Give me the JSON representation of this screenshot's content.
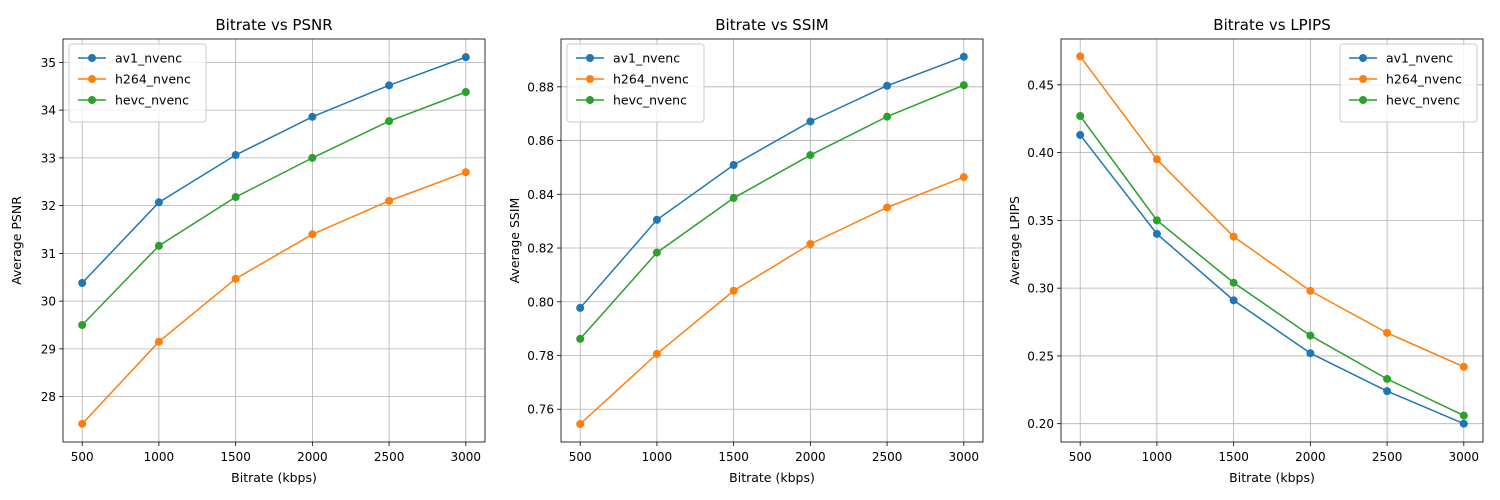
{
  "chart_data": [
    {
      "type": "line",
      "title": "Bitrate vs PSNR",
      "xlabel": "Bitrate (kbps)",
      "ylabel": "Average PSNR",
      "x": [
        500,
        1000,
        1500,
        2000,
        2500,
        3000
      ],
      "xticks": [
        "500",
        "1000",
        "1500",
        "2000",
        "2500",
        "3000"
      ],
      "xlim": [
        375,
        3125
      ],
      "ylim": [
        27.05,
        35.49
      ],
      "yticks": [
        "28",
        "29",
        "30",
        "31",
        "32",
        "33",
        "34",
        "35"
      ],
      "yticks_values": [
        28,
        29,
        30,
        31,
        32,
        33,
        34,
        35
      ],
      "grid": true,
      "legend_position": "upper-left",
      "series": [
        {
          "name": "av1_nvenc",
          "color": "#1f77b4",
          "values": [
            30.38,
            32.07,
            33.06,
            33.86,
            34.52,
            35.11
          ]
        },
        {
          "name": "h264_nvenc",
          "color": "#ff7f0e",
          "values": [
            27.43,
            29.15,
            30.47,
            31.4,
            32.1,
            32.7
          ]
        },
        {
          "name": "hevc_nvenc",
          "color": "#2ca02c",
          "values": [
            29.5,
            31.16,
            32.18,
            33.0,
            33.77,
            34.38
          ]
        }
      ]
    },
    {
      "type": "line",
      "title": "Bitrate vs SSIM",
      "xlabel": "Bitrate (kbps)",
      "ylabel": "Average SSIM",
      "x": [
        500,
        1000,
        1500,
        2000,
        2500,
        3000
      ],
      "xticks": [
        "500",
        "1000",
        "1500",
        "2000",
        "2500",
        "3000"
      ],
      "xlim": [
        375,
        3125
      ],
      "ylim": [
        0.7478,
        0.8978
      ],
      "yticks": [
        "0.76",
        "0.78",
        "0.80",
        "0.82",
        "0.84",
        "0.86",
        "0.88"
      ],
      "yticks_values": [
        0.76,
        0.78,
        0.8,
        0.82,
        0.84,
        0.86,
        0.88
      ],
      "grid": true,
      "legend_position": "upper-left",
      "series": [
        {
          "name": "av1_nvenc",
          "color": "#1f77b4",
          "values": [
            0.7977,
            0.8305,
            0.8509,
            0.8671,
            0.8804,
            0.8912
          ]
        },
        {
          "name": "h264_nvenc",
          "color": "#ff7f0e",
          "values": [
            0.7545,
            0.7806,
            0.8041,
            0.8215,
            0.8351,
            0.8464
          ]
        },
        {
          "name": "hevc_nvenc",
          "color": "#2ca02c",
          "values": [
            0.7862,
            0.8183,
            0.8386,
            0.8546,
            0.8689,
            0.8806
          ]
        }
      ]
    },
    {
      "type": "line",
      "title": "Bitrate vs LPIPS",
      "xlabel": "Bitrate (kbps)",
      "ylabel": "Average LPIPS",
      "x": [
        500,
        1000,
        1500,
        2000,
        2500,
        3000
      ],
      "xticks": [
        "500",
        "1000",
        "1500",
        "2000",
        "2500",
        "3000"
      ],
      "xlim": [
        375,
        3125
      ],
      "ylim": [
        0.1865,
        0.4838
      ],
      "yticks": [
        "0.20",
        "0.25",
        "0.30",
        "0.35",
        "0.40",
        "0.45"
      ],
      "yticks_values": [
        0.2,
        0.25,
        0.3,
        0.35,
        0.4,
        0.45
      ],
      "grid": true,
      "legend_position": "upper-right",
      "series": [
        {
          "name": "av1_nvenc",
          "color": "#1f77b4",
          "values": [
            0.413,
            0.34,
            0.291,
            0.252,
            0.224,
            0.2
          ]
        },
        {
          "name": "h264_nvenc",
          "color": "#ff7f0e",
          "values": [
            0.471,
            0.395,
            0.338,
            0.298,
            0.267,
            0.242
          ]
        },
        {
          "name": "hevc_nvenc",
          "color": "#2ca02c",
          "values": [
            0.427,
            0.35,
            0.304,
            0.265,
            0.233,
            0.206
          ]
        }
      ]
    }
  ]
}
